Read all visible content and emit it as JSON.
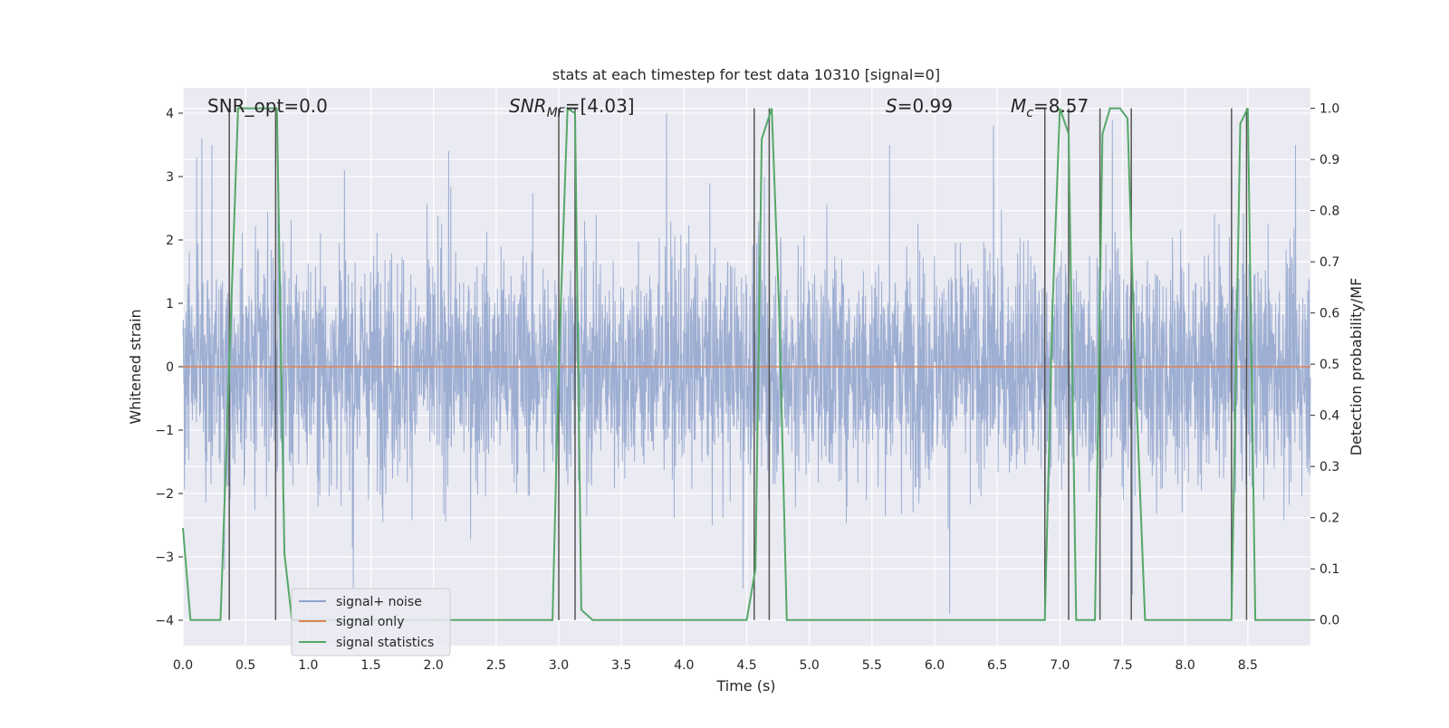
{
  "chart_data": {
    "type": "line",
    "title": "stats at each timestep for test data 10310 [signal=0]",
    "xlabel": "Time (s)",
    "ylabel_left": "Whitened strain",
    "ylabel_right": "Detection probability/MF",
    "xlim": [
      0.0,
      9.0
    ],
    "ylim_left": [
      -4.4,
      4.4
    ],
    "ylim_right": [
      -0.05,
      1.04
    ],
    "x_ticks": [
      0.0,
      0.5,
      1.0,
      1.5,
      2.0,
      2.5,
      3.0,
      3.5,
      4.0,
      4.5,
      5.0,
      5.5,
      6.0,
      6.5,
      7.0,
      7.5,
      8.0,
      8.5
    ],
    "x_tick_labels": [
      "0.0",
      "0.5",
      "1.0",
      "1.5",
      "2.0",
      "2.5",
      "3.0",
      "3.5",
      "4.0",
      "4.5",
      "5.0",
      "5.5",
      "6.0",
      "6.5",
      "7.0",
      "7.5",
      "8.0",
      "8.5"
    ],
    "y_left_ticks": [
      -4,
      -3,
      -2,
      -1,
      0,
      1,
      2,
      3,
      4
    ],
    "y_left_tick_labels": [
      "−4",
      "−3",
      "−2",
      "−1",
      "0",
      "1",
      "2",
      "3",
      "4"
    ],
    "y_right_ticks": [
      0.0,
      0.1,
      0.2,
      0.3,
      0.4,
      0.5,
      0.6,
      0.7,
      0.8,
      0.9,
      1.0
    ],
    "y_right_tick_labels": [
      "0.0",
      "0.1",
      "0.2",
      "0.3",
      "0.4",
      "0.5",
      "0.6",
      "0.7",
      "0.8",
      "0.9",
      "1.0"
    ],
    "grid": true,
    "legend_position": "lower-left",
    "annotations": {
      "snr_opt": "SNR_opt=0.0",
      "snr_mf_var": "SNR",
      "snr_mf_sub": "MF",
      "snr_mf_val": "=[4.03]",
      "s_var": "S",
      "s_val": "=0.99",
      "mc_var": "M",
      "mc_sub": "c",
      "mc_val": "=8.57"
    },
    "series": [
      {
        "name": "signal+ noise",
        "axis": "left",
        "color": "#8fa3cc",
        "note": "dense whitened noise, approx. gaussian, sampled every 0.0024 s over 0-9 s, amplitude mostly within ±2.5, peaks near ±4",
        "noise_std": 0.9,
        "peaks": [
          {
            "x": 0.11,
            "y": 3.3
          },
          {
            "x": 0.15,
            "y": 3.6
          },
          {
            "x": 0.23,
            "y": 3.5
          },
          {
            "x": 0.76,
            "y": 3.6
          },
          {
            "x": 1.29,
            "y": 3.1
          },
          {
            "x": 2.12,
            "y": 3.4
          },
          {
            "x": 3.86,
            "y": 4.0
          },
          {
            "x": 4.64,
            "y": 3.0
          },
          {
            "x": 5.64,
            "y": 3.5
          },
          {
            "x": 6.47,
            "y": 3.8
          },
          {
            "x": 7.42,
            "y": 3.9
          },
          {
            "x": 8.88,
            "y": 3.5
          },
          {
            "x": 0.33,
            "y": -3.2
          },
          {
            "x": 1.36,
            "y": -3.5
          },
          {
            "x": 6.12,
            "y": -3.9
          },
          {
            "x": 7.58,
            "y": -3.6
          },
          {
            "x": 4.47,
            "y": -3.5
          }
        ]
      },
      {
        "name": "signal only",
        "axis": "left",
        "color": "#dd8452",
        "x": [
          0.0,
          9.0
        ],
        "y": [
          0.0,
          0.0
        ]
      },
      {
        "name": "signal statistics",
        "axis": "right",
        "color": "#55a868",
        "x": [
          0.0,
          0.06,
          0.12,
          0.3,
          0.37,
          0.44,
          0.5,
          0.7,
          0.75,
          0.81,
          0.87,
          0.94,
          2.95,
          3.0,
          3.07,
          3.13,
          3.18,
          3.27,
          4.5,
          4.57,
          4.62,
          4.7,
          4.76,
          4.82,
          6.88,
          6.94,
          7.0,
          7.07,
          7.13,
          7.28,
          7.34,
          7.4,
          7.48,
          7.54,
          7.6,
          7.68,
          8.3,
          8.37,
          8.44,
          8.5,
          8.56,
          8.63,
          9.0
        ],
        "y": [
          0.18,
          0.0,
          0.0,
          0.0,
          0.5,
          1.0,
          1.0,
          1.0,
          1.0,
          0.13,
          0.0,
          0.0,
          0.0,
          0.5,
          1.0,
          0.99,
          0.02,
          0.0,
          0.0,
          0.1,
          0.94,
          1.0,
          0.6,
          0.0,
          0.0,
          0.6,
          1.0,
          0.95,
          0.0,
          0.0,
          0.95,
          1.0,
          1.0,
          0.98,
          0.5,
          0.0,
          0.0,
          0.0,
          0.97,
          1.0,
          0.0,
          0.0,
          0.0
        ]
      }
    ],
    "vertical_markers": [
      0.37,
      0.74,
      3.0,
      3.13,
      4.56,
      4.68,
      6.88,
      7.07,
      7.32,
      7.57,
      8.37,
      8.49
    ],
    "marker_color": "#555555"
  }
}
